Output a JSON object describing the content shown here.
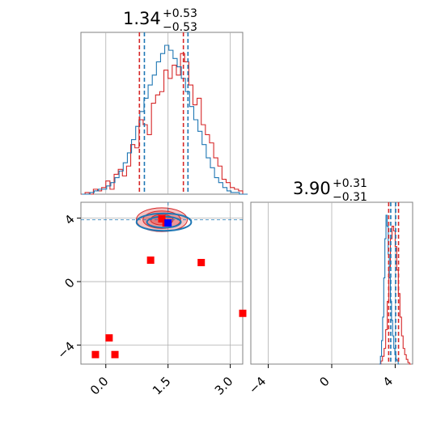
{
  "colors": {
    "series_a": "#d62728",
    "series_b": "#1f77b4",
    "point": "#ff0000",
    "truth": "#0000ff",
    "grid": "#b0b0b0",
    "axes": "#808080"
  },
  "chart_data": [
    {
      "type": "histogram",
      "panel": "param-1-marginal",
      "title": {
        "value": "1.34",
        "plus": "+0.53",
        "minus": "−0.53"
      },
      "xlim": [
        -0.6,
        3.3
      ],
      "grid": true,
      "series": [
        {
          "color": "#d62728",
          "bin_start": -0.6,
          "bin_width": 0.1,
          "counts": [
            0.0,
            0.01,
            0.0,
            0.03,
            0.02,
            0.04,
            0.08,
            0.03,
            0.12,
            0.15,
            0.11,
            0.17,
            0.3,
            0.28,
            0.45,
            0.42,
            0.36,
            0.55,
            0.6,
            0.62,
            0.75,
            0.7,
            0.78,
            0.72,
            0.85,
            0.8,
            0.66,
            0.54,
            0.58,
            0.42,
            0.36,
            0.31,
            0.22,
            0.17,
            0.09,
            0.07,
            0.04,
            0.03,
            0.02,
            0.0
          ],
          "quantile_lines": [
            0.81,
            1.34,
            1.87
          ],
          "dashed_x": [
            0.81,
            1.87
          ]
        },
        {
          "color": "#1f77b4",
          "bin_start": -0.58,
          "bin_width": 0.1,
          "counts": [
            0.0,
            0.0,
            0.01,
            0.02,
            0.03,
            0.03,
            0.05,
            0.07,
            0.1,
            0.14,
            0.19,
            0.25,
            0.33,
            0.41,
            0.5,
            0.58,
            0.66,
            0.72,
            0.8,
            0.85,
            0.9,
            0.87,
            0.82,
            0.77,
            0.7,
            0.62,
            0.53,
            0.45,
            0.38,
            0.3,
            0.22,
            0.16,
            0.1,
            0.07,
            0.04,
            0.02,
            0.01,
            0.01,
            0.0,
            0.0
          ],
          "dashed_x": [
            0.93,
            1.98
          ]
        }
      ]
    },
    {
      "type": "scatter",
      "panel": "joint-param-1-param-2",
      "xlim": [
        -0.6,
        3.3
      ],
      "ylim": [
        -5.2,
        5.0
      ],
      "xticks": [
        "0.0",
        "1.5",
        "3.0"
      ],
      "xtick_values": [
        0.0,
        1.5,
        3.0
      ],
      "yticks": [
        "−4",
        "0",
        "4"
      ],
      "ytick_values": [
        -4,
        0,
        4
      ],
      "grid": true,
      "crosshair": {
        "x": 1.5,
        "y": 3.9
      },
      "points": [
        {
          "x": -0.25,
          "y": -4.6
        },
        {
          "x": 0.08,
          "y": -3.55
        },
        {
          "x": 0.22,
          "y": -4.6
        },
        {
          "x": 1.08,
          "y": 1.35
        },
        {
          "x": 2.3,
          "y": 1.2
        },
        {
          "x": 3.3,
          "y": -2.0
        },
        {
          "x": 1.35,
          "y": 3.95
        },
        {
          "x": 1.45,
          "y": 3.7
        }
      ],
      "truth_point": {
        "x": 1.5,
        "y": 3.7
      },
      "contours": [
        {
          "color": "#d62728",
          "cx": 1.35,
          "cy": 3.9,
          "levels": [
            {
              "rx": 1.35,
              "ry": 0.75
            },
            {
              "rx": 1.0,
              "ry": 0.55
            },
            {
              "rx": 0.6,
              "ry": 0.33
            }
          ]
        },
        {
          "color": "#1f77b4",
          "cx": 1.4,
          "cy": 3.75,
          "levels": [
            {
              "rx": 1.45,
              "ry": 0.55
            },
            {
              "rx": 0.9,
              "ry": 0.35
            }
          ]
        }
      ]
    },
    {
      "type": "histogram",
      "panel": "param-2-marginal",
      "title": {
        "value": "3.90",
        "plus": "+0.31",
        "minus": "−0.31"
      },
      "xlim": [
        -5.1,
        5.1
      ],
      "xticks": [
        "−4",
        "0",
        "4"
      ],
      "xtick_values": [
        -4,
        0,
        4
      ],
      "grid": true,
      "series": [
        {
          "color": "#d62728",
          "bin_start": 3.0,
          "bin_width": 0.1,
          "counts": [
            0.0,
            0.02,
            0.05,
            0.1,
            0.22,
            0.4,
            0.62,
            0.8,
            0.88,
            0.85,
            0.75,
            0.6,
            0.45,
            0.3,
            0.18,
            0.1,
            0.06,
            0.03,
            0.01,
            0.0
          ],
          "quantile_lines": [
            3.59,
            3.9,
            4.21
          ],
          "dashed_x": [
            3.59,
            4.21
          ]
        },
        {
          "color": "#1f77b4",
          "bin_start": 3.0,
          "bin_width": 0.07,
          "counts": [
            0.0,
            0.05,
            0.15,
            0.3,
            0.55,
            0.8,
            0.95,
            0.88,
            0.7,
            0.55,
            0.4,
            0.28,
            0.18,
            0.1,
            0.06,
            0.03,
            0.02,
            0.0
          ],
          "dashed_x": [
            3.72,
            4.03
          ]
        }
      ]
    }
  ]
}
